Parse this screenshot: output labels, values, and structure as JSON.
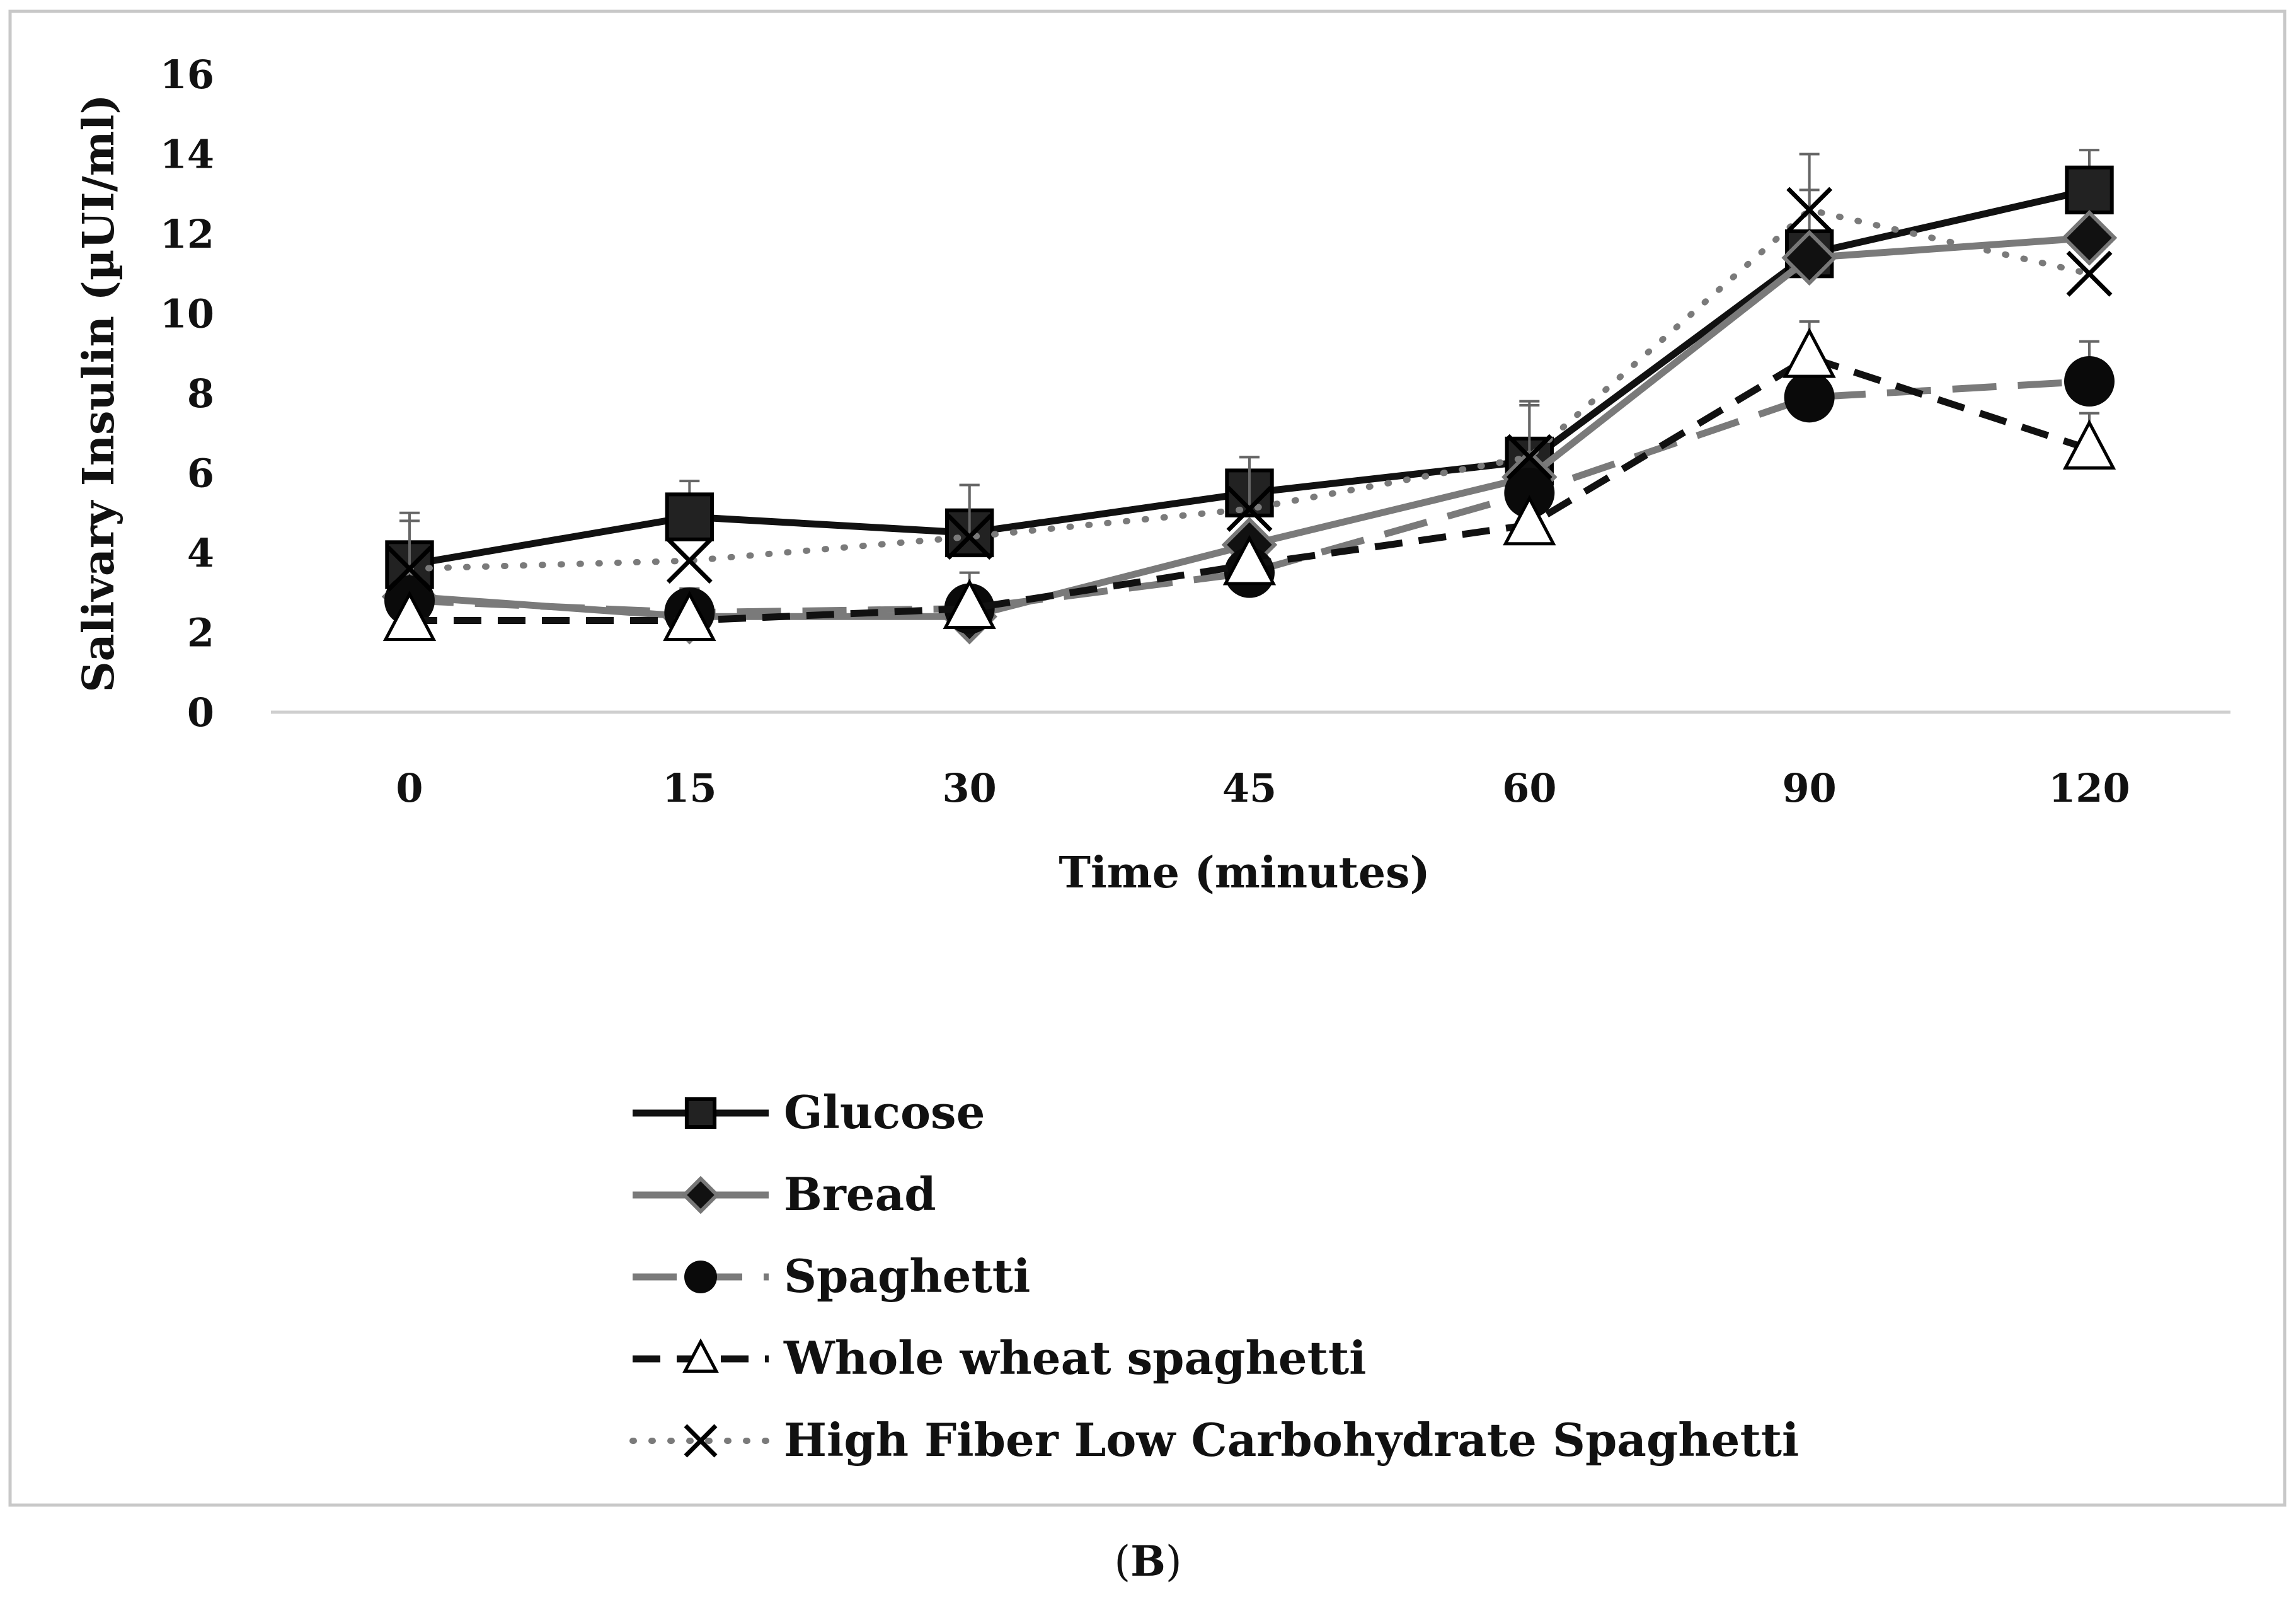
{
  "chart_data": {
    "type": "line",
    "xlabel": "Time (minutes)",
    "ylabel": "Salivary Insulin (µUI/ml)",
    "categories": [
      "0",
      "15",
      "30",
      "45",
      "60",
      "90",
      "120"
    ],
    "ylim": [
      0,
      16
    ],
    "yticks": [
      "0",
      "2",
      "4",
      "6",
      "8",
      "10",
      "12",
      "14",
      "16"
    ],
    "grid": false,
    "legend_position": "bottom-center",
    "series": [
      {
        "name": "Glucose",
        "values": [
          3.7,
          4.9,
          4.5,
          5.5,
          6.3,
          11.5,
          13.1
        ],
        "error": [
          1.3,
          0.9,
          1.2,
          0.9,
          1.5,
          1.6,
          1.0
        ],
        "color": "#111111",
        "dash": "solid",
        "marker": "square"
      },
      {
        "name": "Bread",
        "values": [
          2.9,
          2.4,
          2.4,
          4.2,
          5.9,
          11.4,
          11.9
        ],
        "error": [
          0,
          0,
          0,
          0,
          0,
          0,
          0
        ],
        "color": "#7a7a7a",
        "dash": "solid",
        "marker": "diamond"
      },
      {
        "name": "Spaghetti",
        "values": [
          2.8,
          2.5,
          2.6,
          3.5,
          5.5,
          7.9,
          8.3
        ],
        "error": [
          0,
          0.6,
          0.9,
          0,
          0,
          0,
          1.0
        ],
        "color": "#7a7a7a",
        "dash": "longdash",
        "marker": "circle"
      },
      {
        "name": "Whole wheat spaghetti",
        "values": [
          2.3,
          2.3,
          2.6,
          3.7,
          4.7,
          8.9,
          6.6
        ],
        "error": [
          0,
          0,
          0,
          0,
          0,
          0.9,
          0.9
        ],
        "color": "#111111",
        "dash": "dash",
        "marker": "triangle"
      },
      {
        "name": "High Fiber Low Carbohydrate Spaghetti",
        "values": [
          3.6,
          3.8,
          4.4,
          5.1,
          6.4,
          12.6,
          11.0
        ],
        "error": [
          1.2,
          0,
          1.3,
          1.3,
          1.3,
          1.4,
          0
        ],
        "color": "#7a7a7a",
        "dash": "dot",
        "marker": "x"
      }
    ]
  },
  "panel_label_open": "(",
  "panel_label_letter": "B",
  "panel_label_close": ")"
}
